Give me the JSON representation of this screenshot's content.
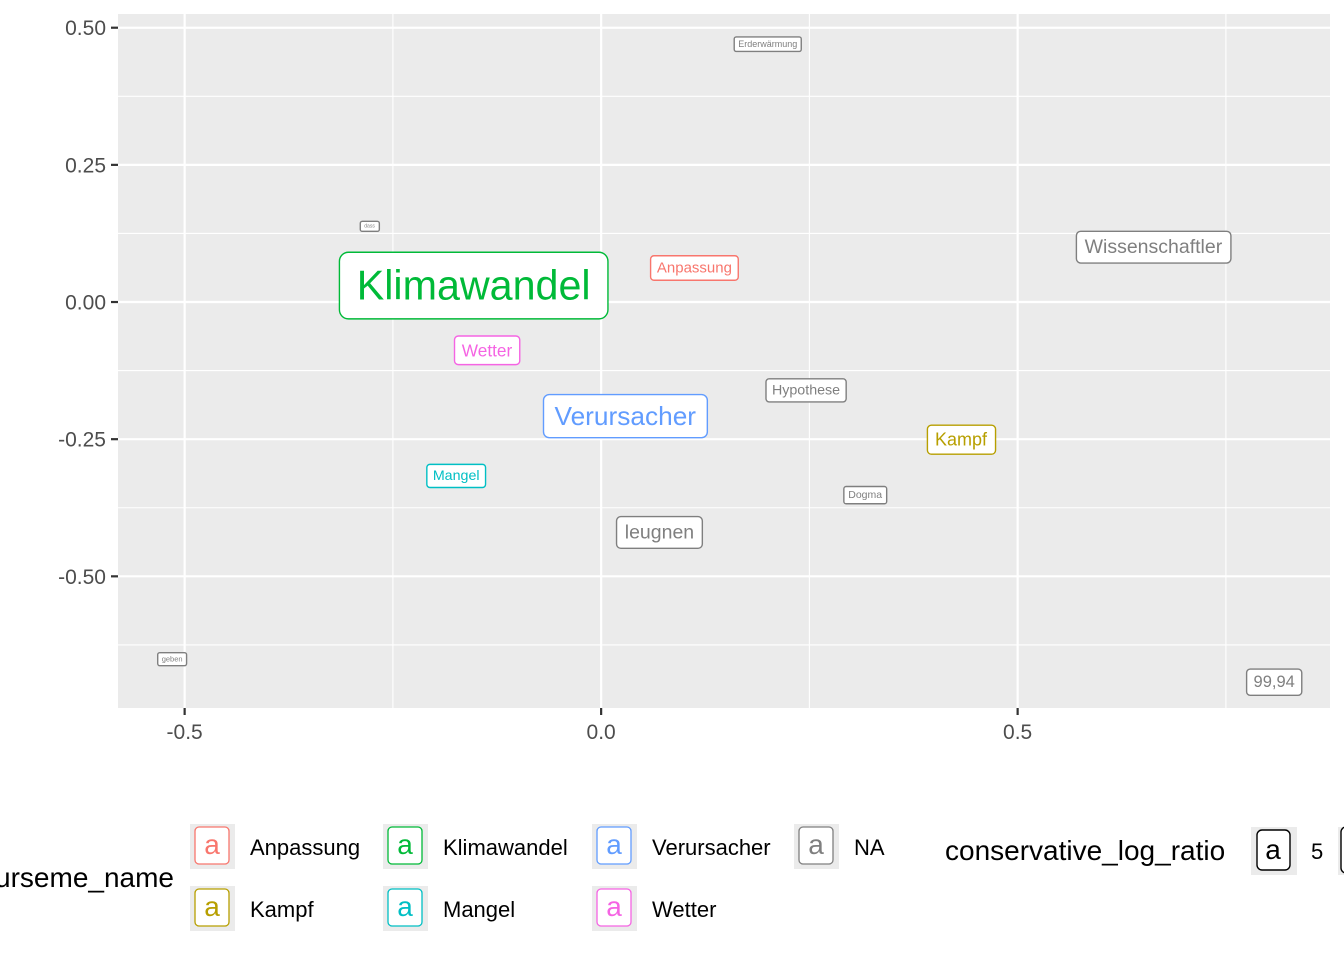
{
  "chart_data": {
    "type": "scatter",
    "title": "",
    "xlabel": "",
    "ylabel": "",
    "xlim": [
      -0.58,
      0.875
    ],
    "ylim": [
      -0.74,
      0.525
    ],
    "x_ticks": [
      -0.5,
      0.0,
      0.5
    ],
    "x_tick_labels": [
      "-0.5",
      "0.0",
      "0.5"
    ],
    "y_ticks": [
      0.5,
      0.25,
      0.0,
      -0.25,
      -0.5
    ],
    "y_tick_labels": [
      "0.50",
      "0.25",
      "0.00",
      "-0.25",
      "-0.50"
    ],
    "grid": true,
    "points": [
      {
        "label": "Erderwärmung",
        "x": 0.2,
        "y": 0.47,
        "group": "NA",
        "conservative_log_ratio": 1.2
      },
      {
        "label": "dass",
        "x": -0.278,
        "y": 0.138,
        "group": "NA",
        "conservative_log_ratio": 0.4
      },
      {
        "label": "Wissenschaftler",
        "x": 0.663,
        "y": 0.1,
        "group": "NA",
        "conservative_log_ratio": 2.6
      },
      {
        "label": "Anpassung",
        "x": 0.112,
        "y": 0.062,
        "group": "Anpassung",
        "conservative_log_ratio": 2.0
      },
      {
        "label": "Klimawandel",
        "x": -0.153,
        "y": 0.03,
        "group": "Klimawandel",
        "conservative_log_ratio": 5.5
      },
      {
        "label": "Wetter",
        "x": -0.137,
        "y": -0.088,
        "group": "Wetter",
        "conservative_log_ratio": 2.3
      },
      {
        "label": "Hypothese",
        "x": 0.246,
        "y": -0.161,
        "group": "NA",
        "conservative_log_ratio": 1.9
      },
      {
        "label": "Verursacher",
        "x": 0.029,
        "y": -0.208,
        "group": "Verursacher",
        "conservative_log_ratio": 3.5
      },
      {
        "label": "Kampf",
        "x": 0.432,
        "y": -0.251,
        "group": "Kampf",
        "conservative_log_ratio": 2.4
      },
      {
        "label": "Mangel",
        "x": -0.174,
        "y": -0.317,
        "group": "Mangel",
        "conservative_log_ratio": 1.9
      },
      {
        "label": "Dogma",
        "x": 0.317,
        "y": -0.352,
        "group": "NA",
        "conservative_log_ratio": 1.4
      },
      {
        "label": "leugnen",
        "x": 0.07,
        "y": -0.42,
        "group": "NA",
        "conservative_log_ratio": 2.6
      },
      {
        "label": "geben",
        "x": -0.515,
        "y": -0.651,
        "group": "NA",
        "conservative_log_ratio": 1.0
      },
      {
        "label": "99,94",
        "x": 0.808,
        "y": -0.693,
        "group": "NA",
        "conservative_log_ratio": 2.2
      }
    ],
    "colors": {
      "Anpassung": "#F8766D",
      "Kampf": "#B79F00",
      "Klimawandel": "#00BA38",
      "Mangel": "#00BFC4",
      "Verursacher": "#619CFF",
      "Wetter": "#F564E3",
      "NA": "#7F7F7F"
    },
    "legend": {
      "position": "bottom",
      "color_title": "discourseme_name",
      "color_entries": [
        {
          "name": "Anpassung",
          "key_letter": "a"
        },
        {
          "name": "Kampf",
          "key_letter": "a"
        },
        {
          "name": "Klimawandel",
          "key_letter": "a"
        },
        {
          "name": "Mangel",
          "key_letter": "a"
        },
        {
          "name": "Verursacher",
          "key_letter": "a"
        },
        {
          "name": "Wetter",
          "key_letter": "a"
        },
        {
          "name": "NA",
          "key_letter": "a"
        }
      ],
      "size_title": "conservative_log_ratio",
      "size_entries": [
        {
          "value": "5",
          "key_letter": "a"
        }
      ]
    }
  }
}
